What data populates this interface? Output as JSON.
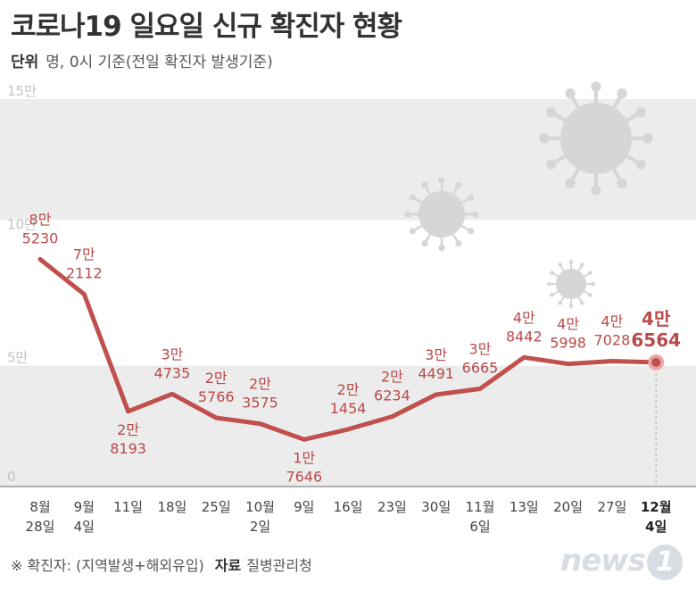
{
  "title": "코로나19 일요일 신규 확진자 현황",
  "unit_label": "단위",
  "unit_text": "명, 0시 기준(전일 확진자 발생기준)",
  "footnote": "※ 확진자: (지역발생+해외유입)",
  "source_label": "자료",
  "source_text": "질병관리청",
  "logo_text": "news",
  "logo_mark": "1",
  "colors": {
    "line": "#c0504d",
    "label": "#b94a4a",
    "band": "#ececec",
    "axis": "#888888"
  },
  "chart_data": {
    "type": "line",
    "title": "코로나19 일요일 신규 확진자 현황",
    "ylabel": "명",
    "ylim": [
      0,
      150000
    ],
    "y_ticks": [
      {
        "value": 0,
        "label": "0"
      },
      {
        "value": 50000,
        "label": "5만"
      },
      {
        "value": 100000,
        "label": "10만"
      },
      {
        "value": 150000,
        "label": "15만"
      }
    ],
    "categories": [
      [
        "8월",
        "28일"
      ],
      [
        "9월",
        "4일"
      ],
      [
        "11일"
      ],
      [
        "18일"
      ],
      [
        "25일"
      ],
      [
        "10월",
        "2일"
      ],
      [
        "9일"
      ],
      [
        "16일"
      ],
      [
        "23일"
      ],
      [
        "30일"
      ],
      [
        "11월",
        "6일"
      ],
      [
        "13일"
      ],
      [
        "20일"
      ],
      [
        "27일"
      ],
      [
        "12월",
        "4일"
      ]
    ],
    "values": [
      85230,
      72112,
      28193,
      34735,
      25766,
      23575,
      17646,
      21454,
      26234,
      34491,
      36665,
      48442,
      45998,
      47028,
      46564
    ],
    "labels": [
      [
        "8만",
        "5230"
      ],
      [
        "7만",
        "2112"
      ],
      [
        "2만",
        "8193"
      ],
      [
        "3만",
        "4735"
      ],
      [
        "2만",
        "5766"
      ],
      [
        "2만",
        "3575"
      ],
      [
        "1만",
        "7646"
      ],
      [
        "2만",
        "1454"
      ],
      [
        "2만",
        "6234"
      ],
      [
        "3만",
        "4491"
      ],
      [
        "3만",
        "6665"
      ],
      [
        "4만",
        "8442"
      ],
      [
        "4만",
        "5998"
      ],
      [
        "4만",
        "7028"
      ],
      [
        "4만",
        "6564"
      ]
    ],
    "label_positions": [
      "above",
      "above",
      "below",
      "above",
      "above",
      "above",
      "below",
      "above",
      "above",
      "above",
      "above",
      "above",
      "above",
      "above",
      "above"
    ],
    "highlight_index": 14
  }
}
